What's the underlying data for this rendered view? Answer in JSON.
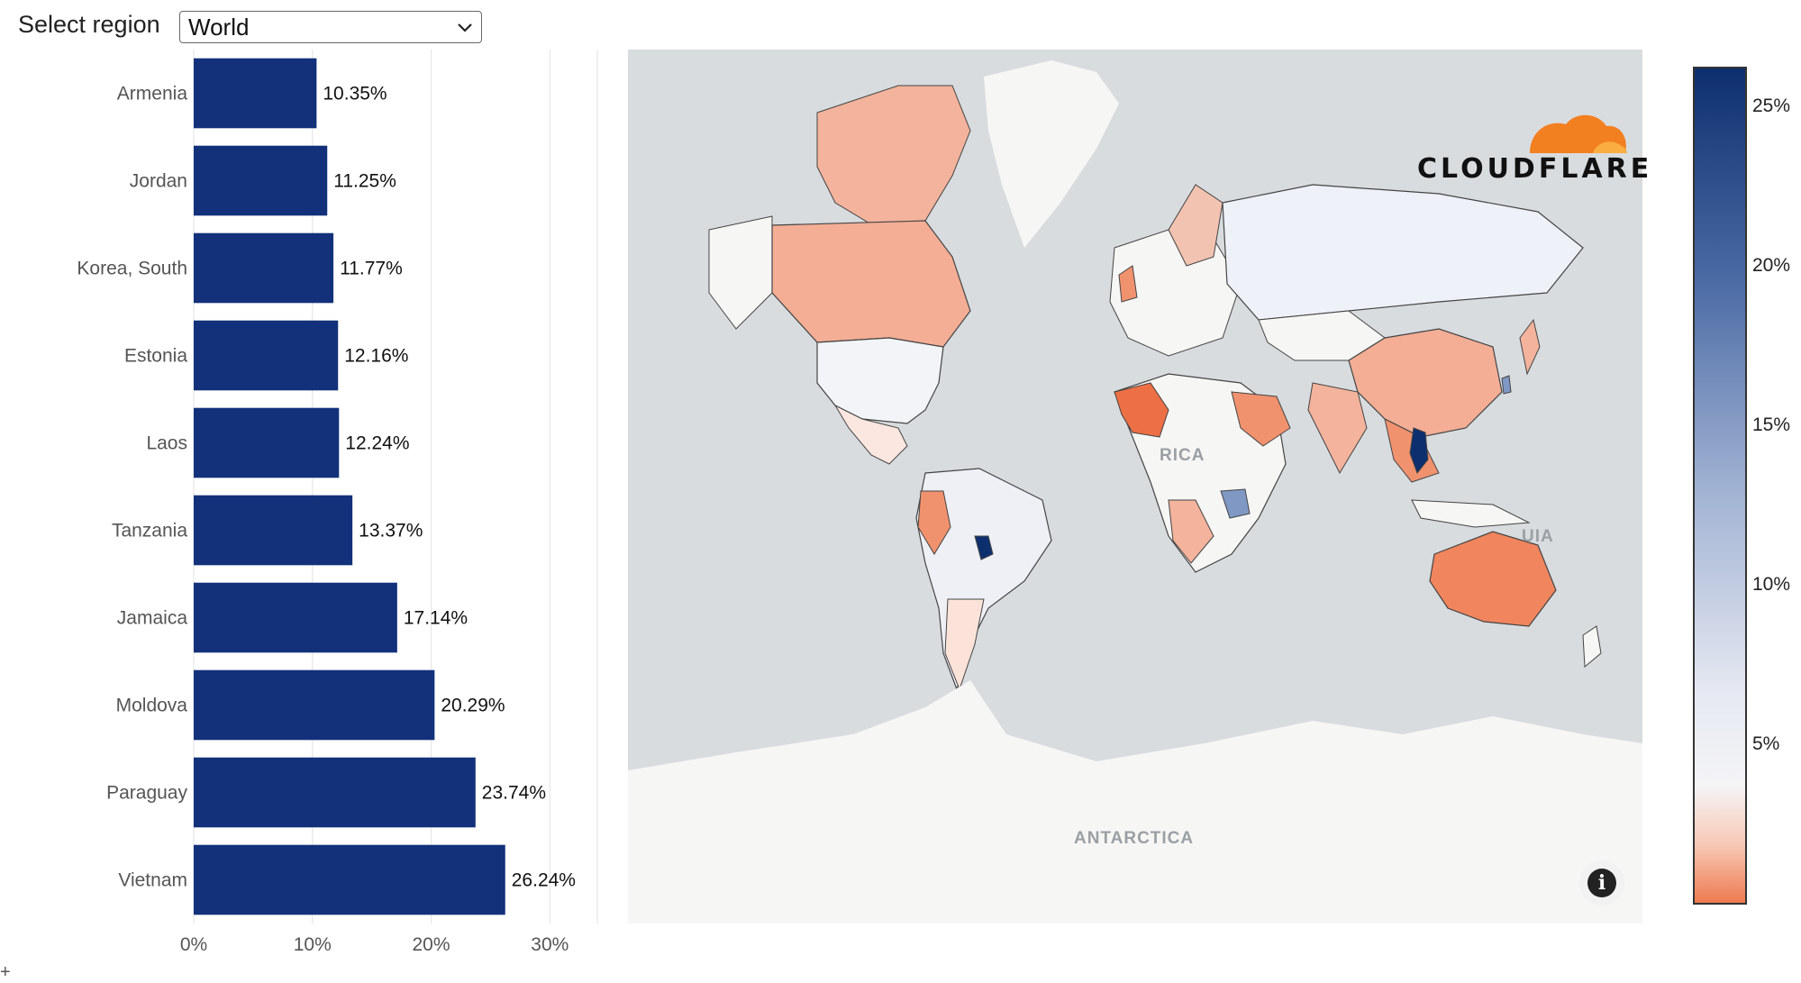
{
  "region_selector": {
    "label": "Select region",
    "selected": "World"
  },
  "chart_data": {
    "type": "bar",
    "orientation": "horizontal",
    "categories": [
      "Armenia",
      "Jordan",
      "Korea, South",
      "Estonia",
      "Laos",
      "Tanzania",
      "Jamaica",
      "Moldova",
      "Paraguay",
      "Vietnam"
    ],
    "values": [
      10.35,
      11.25,
      11.77,
      12.16,
      12.24,
      13.37,
      17.14,
      20.29,
      23.74,
      26.24
    ],
    "value_labels": [
      "10.35%",
      "11.25%",
      "11.77%",
      "12.16%",
      "12.24%",
      "13.37%",
      "17.14%",
      "20.29%",
      "23.74%",
      "26.24%"
    ],
    "xlim": [
      0,
      34
    ],
    "xticks": [
      0,
      10,
      20,
      30
    ],
    "xtick_labels": [
      "0%",
      "10%",
      "20%",
      "30%"
    ],
    "grid": true,
    "bar_color": "#12317a"
  },
  "map": {
    "labels": [
      "RICA",
      "ANTARCTICA",
      "UIA"
    ],
    "logo_text": "CLOUDFLARE",
    "info_icon": "info-icon",
    "colorbar_ticks": [
      "25%",
      "20%",
      "15%",
      "10%",
      "5%"
    ],
    "colors": {
      "ocean": "#d8dcdf",
      "land": "#f6f6f5",
      "high": "#0e2f6e",
      "low": "#ee7a50"
    }
  },
  "cursor_glyph": "+"
}
